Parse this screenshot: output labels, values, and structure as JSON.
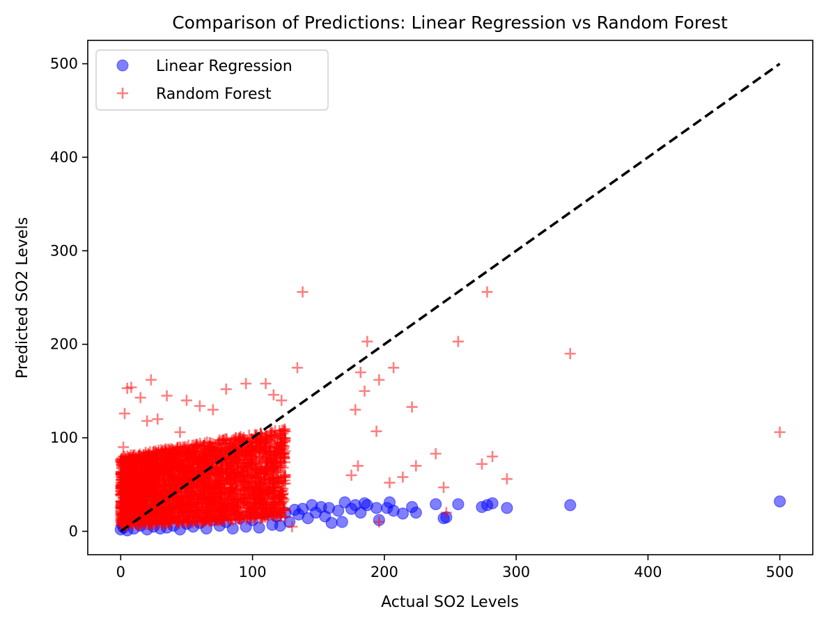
{
  "chart_data": {
    "type": "scatter",
    "title": "Comparison of Predictions: Linear Regression vs Random Forest",
    "xlabel": "Actual SO2 Levels",
    "ylabel": "Predicted SO2 Levels",
    "xlim": [
      -25,
      525
    ],
    "ylim": [
      -25,
      525
    ],
    "xticks": [
      0,
      100,
      200,
      300,
      400,
      500
    ],
    "yticks": [
      0,
      100,
      200,
      300,
      400,
      500
    ],
    "grid": false,
    "legend": "top-left",
    "reference_line": {
      "style": "dashed",
      "color": "#000000",
      "from": [
        0,
        0
      ],
      "to": [
        500,
        500
      ]
    },
    "series": [
      {
        "name": "Linear Regression",
        "marker": "circle",
        "color": "#0000ff",
        "alpha": 0.5,
        "points": [
          [
            500,
            32
          ],
          [
            341,
            28
          ],
          [
            293,
            25
          ],
          [
            282,
            30
          ],
          [
            278,
            28
          ],
          [
            274,
            26
          ],
          [
            256,
            29
          ],
          [
            247,
            15
          ],
          [
            245,
            14
          ],
          [
            239,
            29
          ],
          [
            224,
            20
          ],
          [
            221,
            26
          ],
          [
            214,
            19
          ],
          [
            207,
            22
          ],
          [
            204,
            31
          ],
          [
            202,
            25
          ],
          [
            196,
            12
          ],
          [
            194,
            25
          ],
          [
            187,
            28
          ],
          [
            185,
            30
          ],
          [
            182,
            20
          ],
          [
            178,
            28
          ],
          [
            175,
            24
          ],
          [
            170,
            31
          ],
          [
            168,
            10
          ],
          [
            165,
            22
          ],
          [
            160,
            9
          ],
          [
            158,
            25
          ],
          [
            155,
            16
          ],
          [
            152,
            26
          ],
          [
            148,
            20
          ],
          [
            145,
            28
          ],
          [
            142,
            14
          ],
          [
            138,
            24
          ],
          [
            135,
            18
          ],
          [
            132,
            23
          ],
          [
            128,
            10
          ],
          [
            125,
            20
          ],
          [
            121,
            6
          ],
          [
            118,
            16
          ],
          [
            115,
            7
          ],
          [
            110,
            18
          ],
          [
            105,
            4
          ],
          [
            100,
            12
          ],
          [
            95,
            5
          ],
          [
            90,
            14
          ],
          [
            85,
            3
          ],
          [
            80,
            10
          ],
          [
            75,
            6
          ],
          [
            70,
            12
          ],
          [
            65,
            3
          ],
          [
            60,
            9
          ],
          [
            55,
            5
          ],
          [
            50,
            8
          ],
          [
            45,
            2
          ],
          [
            40,
            6
          ],
          [
            35,
            4
          ],
          [
            30,
            3
          ],
          [
            25,
            5
          ],
          [
            20,
            2
          ],
          [
            15,
            6
          ],
          [
            10,
            3
          ],
          [
            5,
            1
          ],
          [
            2,
            4
          ],
          [
            0,
            2
          ],
          [
            1,
            8
          ]
        ]
      },
      {
        "name": "Random Forest",
        "marker": "plus",
        "color": "#ff0000",
        "alpha": 0.5,
        "points": [
          [
            500,
            106
          ],
          [
            341,
            190
          ],
          [
            293,
            56
          ],
          [
            282,
            80
          ],
          [
            278,
            256
          ],
          [
            274,
            72
          ],
          [
            256,
            203
          ],
          [
            247,
            20
          ],
          [
            245,
            47
          ],
          [
            239,
            83
          ],
          [
            224,
            70
          ],
          [
            221,
            133
          ],
          [
            214,
            58
          ],
          [
            207,
            175
          ],
          [
            204,
            52
          ],
          [
            196,
            162
          ],
          [
            196,
            10
          ],
          [
            194,
            107
          ],
          [
            187,
            203
          ],
          [
            185,
            150
          ],
          [
            182,
            170
          ],
          [
            180,
            70
          ],
          [
            178,
            130
          ],
          [
            175,
            60
          ],
          [
            138,
            256
          ],
          [
            134,
            175
          ],
          [
            130,
            5
          ],
          [
            122,
            140
          ],
          [
            116,
            146
          ],
          [
            110,
            158
          ],
          [
            95,
            158
          ],
          [
            80,
            152
          ],
          [
            70,
            130
          ],
          [
            60,
            134
          ],
          [
            50,
            140
          ],
          [
            45,
            106
          ],
          [
            35,
            145
          ],
          [
            28,
            120
          ],
          [
            23,
            162
          ],
          [
            20,
            118
          ],
          [
            15,
            143
          ],
          [
            8,
            154
          ],
          [
            5,
            153
          ],
          [
            3,
            126
          ],
          [
            2,
            90
          ],
          [
            1,
            60
          ],
          [
            0,
            40
          ],
          [
            0,
            10
          ]
        ]
      }
    ],
    "dense_region": {
      "series": "Random Forest",
      "x_range": [
        0,
        125
      ],
      "y_range_at_x0": [
        5,
        80
      ],
      "y_range_at_x125": [
        15,
        110
      ],
      "count": 3200
    }
  }
}
